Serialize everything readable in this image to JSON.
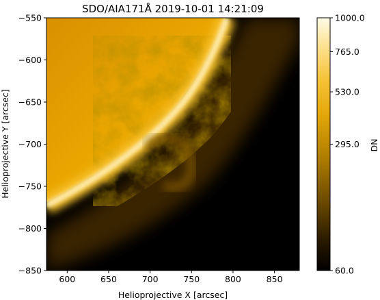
{
  "plot": {
    "title": "SDO/AIA171Å 2019-10-01 14:21:09",
    "xlabel": "Helioprojective X [arcsec]",
    "ylabel": "Helioprojective Y [arcsec]",
    "x_ticks": [
      "600",
      "650",
      "700",
      "750",
      "800",
      "850"
    ],
    "x_tick_values": [
      600,
      650,
      700,
      750,
      800,
      850
    ],
    "y_ticks": [
      "−550",
      "−600",
      "−650",
      "−700",
      "−750",
      "−800",
      "−850"
    ],
    "y_tick_values": [
      -550,
      -600,
      -650,
      -700,
      -750,
      -800,
      -850
    ],
    "xlim": [
      575,
      880
    ],
    "ylim": [
      -850,
      -550
    ]
  },
  "colorbar": {
    "label": "DN",
    "ticks": [
      "1000.0",
      "765.0",
      "530.0",
      "295.0",
      "60.0"
    ],
    "tick_values": [
      1000,
      765,
      530,
      295,
      60
    ],
    "range": [
      60,
      1000
    ],
    "scale": "sqrt",
    "colormap": "sdoaia171",
    "colors": [
      "#000000",
      "#4a2f00",
      "#9a6b00",
      "#d9a200",
      "#f5bd1b",
      "#fee38a",
      "#ffffff"
    ]
  },
  "image": {
    "description_colors": {
      "limb": "#fff8d0",
      "disk": "#e9a200",
      "space": "#000000"
    }
  }
}
